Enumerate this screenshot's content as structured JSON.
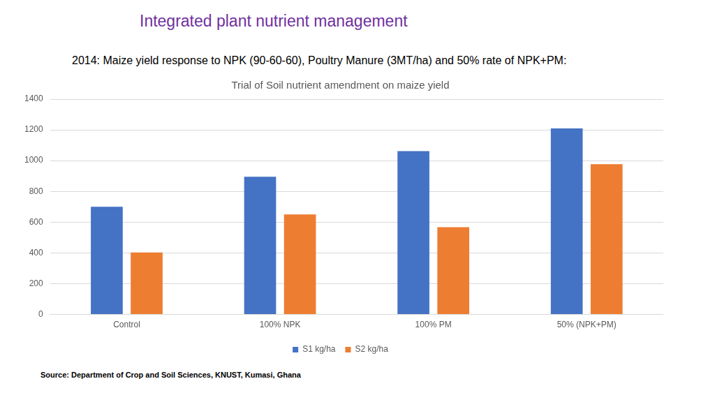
{
  "heading": "Integrated plant nutrient management",
  "subtitle": "2014: Maize yield response to NPK (90-60-60), Poultry Manure (3MT/ha) and 50% rate of NPK+PM:",
  "source": "Source: Department of Crop and Soil Sciences, KNUST, Kumasi, Ghana",
  "chart_data": {
    "type": "bar",
    "title": "Trial of Soil nutrient amendment on maize yield",
    "categories": [
      "Control",
      "100% NPK",
      "100% PM",
      "50% (NPK+PM)"
    ],
    "series": [
      {
        "name": "S1 kg/ha",
        "color": "#4472c4",
        "values": [
          700,
          895,
          1062,
          1210
        ]
      },
      {
        "name": "S2 kg/ha",
        "color": "#ed7d31",
        "values": [
          403,
          650,
          567,
          977
        ]
      }
    ],
    "ylim": [
      0,
      1400
    ],
    "yticks": [
      0,
      200,
      400,
      600,
      800,
      1000,
      1200,
      1400
    ],
    "grid": true,
    "legend": "bottom"
  }
}
